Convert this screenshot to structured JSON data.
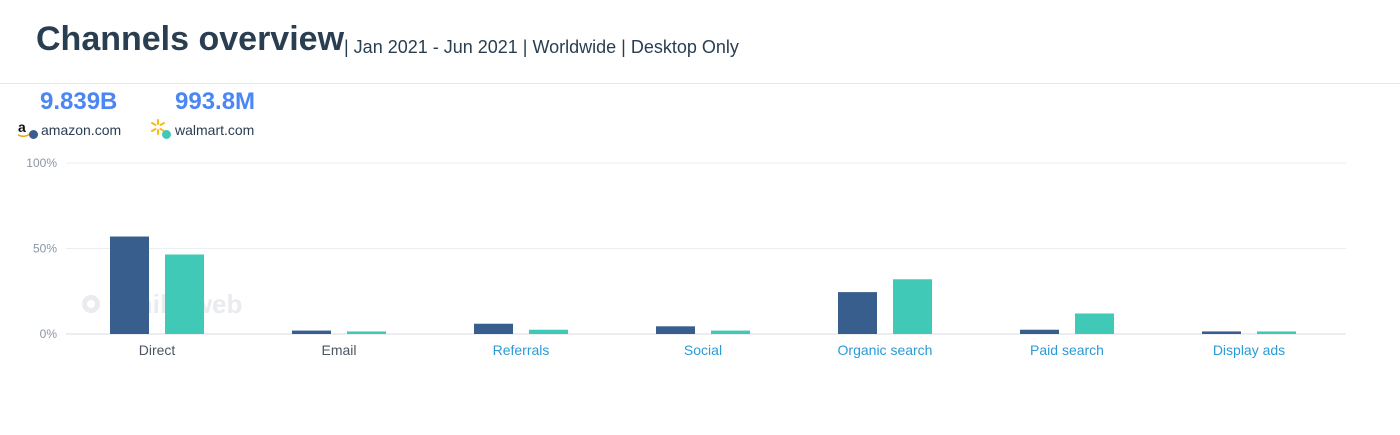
{
  "header": {
    "title": "Channels overview",
    "subtitle": "| Jan 2021 - Jun 2021 | Worldwide | Desktop Only"
  },
  "sites": [
    {
      "value": "9.839B",
      "name": "amazon.com",
      "color": "#375e8c",
      "logo": "amazon-logo-icon"
    },
    {
      "value": "993.8M",
      "name": "walmart.com",
      "color": "#41c9b8",
      "logo": "walmart-spark-icon"
    }
  ],
  "watermark": "similarweb",
  "chart_data": {
    "type": "bar",
    "categories": [
      "Direct",
      "Email",
      "Referrals",
      "Social",
      "Organic search",
      "Paid search",
      "Display ads"
    ],
    "category_link_colors": [
      "#4a5662",
      "#4a5662",
      "#2a9bd6",
      "#2a9bd6",
      "#2a9bd6",
      "#2a9bd6",
      "#2a9bd6"
    ],
    "series": [
      {
        "name": "amazon.com",
        "color": "#375e8c",
        "values": [
          57,
          2,
          6,
          4.5,
          24.5,
          2.5,
          1.5
        ]
      },
      {
        "name": "walmart.com",
        "color": "#41c9b8",
        "values": [
          46.5,
          1.5,
          2.5,
          2,
          32,
          12,
          1.5
        ]
      }
    ],
    "yticks": [
      "0%",
      "50%",
      "100%"
    ],
    "ylim": [
      0,
      100
    ],
    "grid": true
  }
}
